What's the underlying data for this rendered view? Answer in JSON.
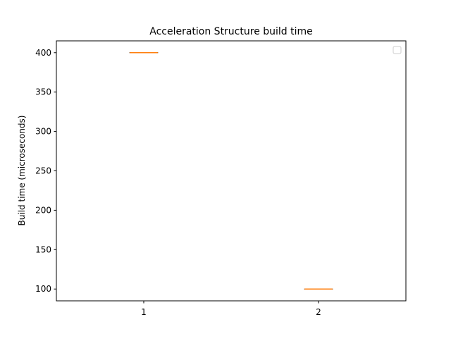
{
  "chart_data": {
    "type": "boxplot",
    "title": "Acceleration Structure build time",
    "xlabel": "",
    "ylabel": "Build time (microseconds)",
    "categories": [
      "1",
      "2"
    ],
    "boxes": [
      {
        "category": "1",
        "min": 400,
        "q1": 400,
        "median": 400,
        "q3": 400,
        "max": 400
      },
      {
        "category": "2",
        "min": 100,
        "q1": 100,
        "median": 100,
        "q3": 100,
        "max": 100
      }
    ],
    "ylim": [
      85,
      415
    ],
    "yticks": [
      100,
      150,
      200,
      250,
      300,
      350,
      400
    ],
    "grid": false,
    "legend": {
      "placement": "top-right",
      "entries": []
    },
    "colors": {
      "box": "#000000",
      "median": "#ff7f0e",
      "axes": "#000000"
    }
  }
}
